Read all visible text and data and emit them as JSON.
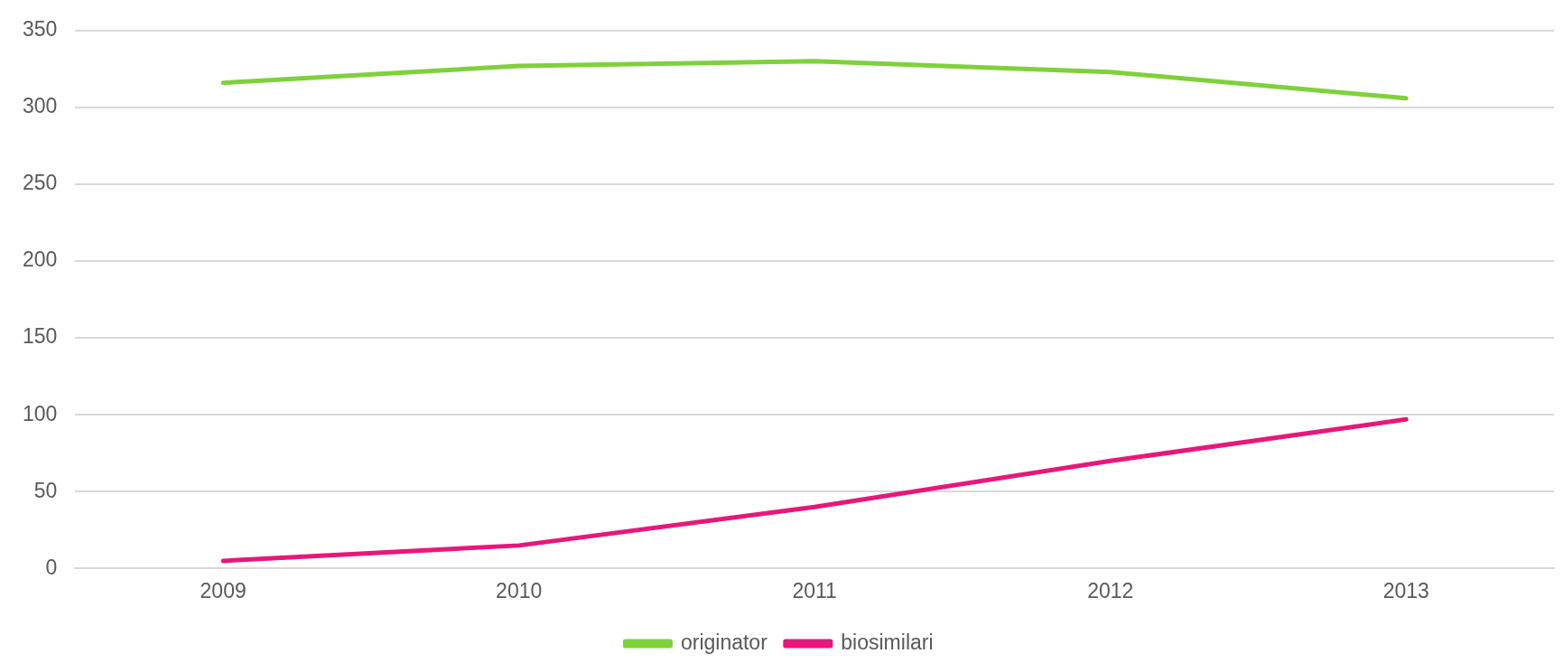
{
  "chart_data": {
    "type": "line",
    "categories": [
      "2009",
      "2010",
      "2011",
      "2012",
      "2013"
    ],
    "series": [
      {
        "name": "originator",
        "color": "#7fd13b",
        "values": [
          316,
          327,
          330,
          323,
          306
        ]
      },
      {
        "name": "biosimilari",
        "color": "#e8177a",
        "values": [
          5,
          15,
          40,
          70,
          97
        ]
      }
    ],
    "ylim": [
      0,
      350
    ],
    "yticks": [
      0,
      50,
      100,
      150,
      200,
      250,
      300,
      350
    ],
    "grid": "y",
    "legend": "bottom",
    "marker": "none",
    "line_style": "solid"
  }
}
